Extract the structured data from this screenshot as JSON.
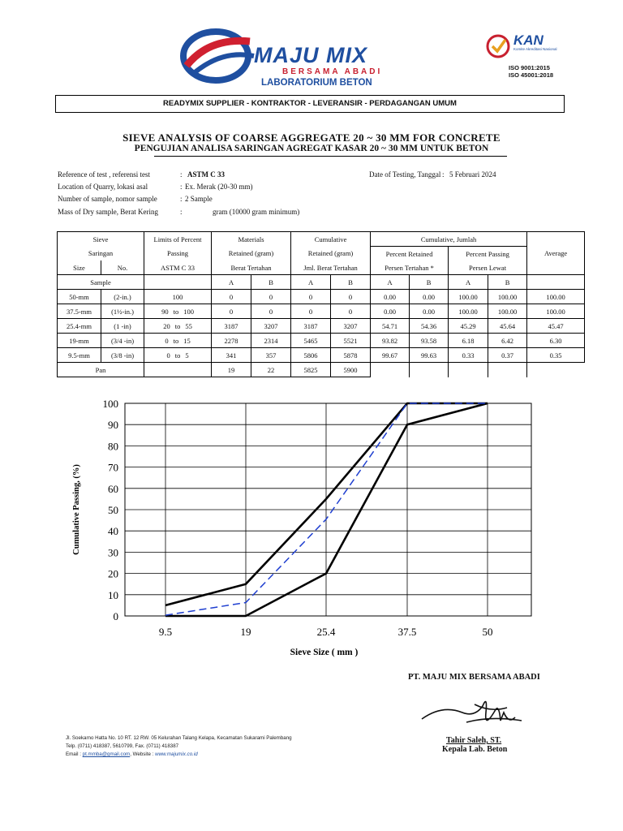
{
  "header": {
    "logo_main": "MAJU MIX",
    "logo_sub": "BERSAMA ABADI",
    "lab_title": "LABORATORIUM BETON",
    "kan_logo": "KAN",
    "kan_sub": "Komite Akreditasi Nasional",
    "iso1": "ISO 9001:2015",
    "iso2": "ISO 45001:2018",
    "banner": "READYMIX SUPPLIER - KONTRAKTOR - LEVERANSIR - PERDAGANGAN  UMUM"
  },
  "title": {
    "main": "SIEVE ANALYSIS OF COARSE AGGREGATE 20 ~ 30 MM FOR CONCRETE",
    "sub": "PENGUJIAN ANALISA SARINGAN AGREGAT KASAR 20 ~ 30 MM UNTUK BETON"
  },
  "info": {
    "ref_label": "Reference of test , referensi test",
    "ref_value": "ASTM C 33",
    "quarry_label": "Location of Quarry, lokasi asal",
    "quarry_value": "Ex. Merak (20-30 mm)",
    "sample_label": "Number of sample, nomor sample",
    "sample_value": "2 Sample",
    "mass_label": "Mass of Dry sample, Berat Kering",
    "mass_value": "gram (10000 gram minimum)",
    "date_label": "Date of Testing, Tanggal",
    "date_value": "5 Februari 2024",
    "colon": ":"
  },
  "table": {
    "h_sieve": "Sieve",
    "h_saringan": "Saringan",
    "h_size": "Size",
    "h_no": "No.",
    "h_sample": "Sample",
    "h_limits": "Limits of Percent",
    "h_passing": "Passing",
    "h_astm": "ASTM C 33",
    "h_materials": "Materials",
    "h_retained": "Retained (gram)",
    "h_berat": "Berat Tertahan",
    "h_cumulative": "Cumulative",
    "h_cum_retained": "Retained (gram)",
    "h_jml": "Jml. Berat Tertahan",
    "h_cum_jumlah": "Cumulative, Jumlah",
    "h_pct_retained": "Percent Retained",
    "h_persen_tertahan": "Persen Tertahan *",
    "h_pct_passing": "Percent Passing",
    "h_persen_lewat": "Persen Lewat",
    "h_average": "Average",
    "h_a": "A",
    "h_b": "B",
    "rows": [
      {
        "size": "50-mm",
        "no": "(2-in.)",
        "lim1": "",
        "to": "",
        "lim2": "",
        "limit": "100",
        "ma": "0",
        "mb": "0",
        "ca": "0",
        "cb": "0",
        "pra": "0.00",
        "prb": "0.00",
        "ppa": "100.00",
        "ppb": "100.00",
        "avg": "100.00"
      },
      {
        "size": "37.5-mm",
        "no": "(1½-in.)",
        "lim1": "90",
        "to": "to",
        "lim2": "100",
        "limit": "",
        "ma": "0",
        "mb": "0",
        "ca": "0",
        "cb": "0",
        "pra": "0.00",
        "prb": "0.00",
        "ppa": "100.00",
        "ppb": "100.00",
        "avg": "100.00"
      },
      {
        "size": "25.4-mm",
        "no": "(1 -in)",
        "lim1": "20",
        "to": "to",
        "lim2": "55",
        "limit": "",
        "ma": "3187",
        "mb": "3207",
        "ca": "3187",
        "cb": "3207",
        "pra": "54.71",
        "prb": "54.36",
        "ppa": "45.29",
        "ppb": "45.64",
        "avg": "45.47"
      },
      {
        "size": "19-mm",
        "no": "(3/4 -in)",
        "lim1": "0",
        "to": "to",
        "lim2": "15",
        "limit": "",
        "ma": "2278",
        "mb": "2314",
        "ca": "5465",
        "cb": "5521",
        "pra": "93.82",
        "prb": "93.58",
        "ppa": "6.18",
        "ppb": "6.42",
        "avg": "6.30"
      },
      {
        "size": "9.5-mm",
        "no": "(3/8 -in)",
        "lim1": "0",
        "to": "to",
        "lim2": "5",
        "limit": "",
        "ma": "341",
        "mb": "357",
        "ca": "5806",
        "cb": "5878",
        "pra": "99.67",
        "prb": "99.63",
        "ppa": "0.33",
        "ppb": "0.37",
        "avg": "0.35"
      }
    ],
    "pan_label": "Pan",
    "pan_ma": "19",
    "pan_mb": "22",
    "pan_ca": "5825",
    "pan_cb": "5900"
  },
  "chart_data": {
    "type": "line",
    "xlabel": "Sieve Size ( mm )",
    "ylabel": "Cumulative Passing, (%)",
    "categories": [
      "9.5",
      "19",
      "25.4",
      "37.5",
      "50"
    ],
    "ylim": [
      0,
      100
    ],
    "yticks": [
      0,
      10,
      20,
      30,
      40,
      50,
      60,
      70,
      80,
      90,
      100
    ],
    "grid": true,
    "series": [
      {
        "values": [
          5,
          15,
          55,
          100,
          100
        ],
        "color": "#000000",
        "style": "solid"
      },
      {
        "values": [
          0,
          0,
          20,
          90,
          100
        ],
        "color": "#000000",
        "style": "solid"
      },
      {
        "values": [
          0.35,
          6.3,
          45.47,
          100,
          100
        ],
        "color": "#1f3fd0",
        "style": "dashed"
      }
    ]
  },
  "footer": {
    "company": "PT. MAJU MIX BERSAMA ABADI",
    "signer_name": "Tahir Saleh, ST.",
    "signer_title": "Kepala Lab. Beton",
    "address": "Jl. Soekarno Hatta No. 10 RT. 12 RW. 05 Kelurahan Talang Kelapa, Kecamatan Sukarami Palembang",
    "phone": "Telp. (0711) 418387, 5610799, Fax. (0711) 418387",
    "email_label": "Email :",
    "email": "pt.mmba@gmail.com",
    "website_label": ",  Website :",
    "website": "www.majumix.co.id"
  }
}
